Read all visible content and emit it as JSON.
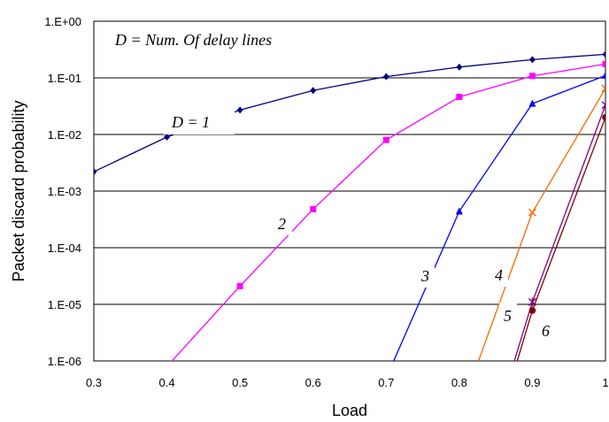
{
  "chart_data": {
    "type": "line",
    "title": "",
    "xlabel": "Load",
    "ylabel": "Packet discard probability",
    "xlim": [
      0.3,
      1
    ],
    "ylim_log10": [
      -6,
      0
    ],
    "yscale": "log",
    "grid": "horizontal",
    "x_ticks": [
      "0.3",
      "0.4",
      "0.5",
      "0.6",
      "0.7",
      "0.8",
      "0.9",
      "1"
    ],
    "y_ticks": [
      "1.E+00",
      "1.E-01",
      "1.E-02",
      "1.E-03",
      "1.E-04",
      "1.E-05",
      "1.E-06"
    ],
    "annotation": "D = Num. Of delay lines",
    "series": [
      {
        "name": "D = 1",
        "color": "#00007f",
        "marker": "diamond",
        "x": [
          0.3,
          0.4,
          0.5,
          0.6,
          0.7,
          0.8,
          0.9,
          1.0
        ],
        "y": [
          0.0022,
          0.009,
          0.027,
          0.06,
          0.105,
          0.155,
          0.21,
          0.26
        ]
      },
      {
        "name": "2",
        "color": "#ff00ff",
        "marker": "square",
        "x": [
          0.4,
          0.5,
          0.6,
          0.7,
          0.8,
          0.9,
          1.0
        ],
        "y": [
          8e-07,
          2.1e-05,
          0.00048,
          0.008,
          0.046,
          0.108,
          0.175
        ]
      },
      {
        "name": "3",
        "color": "#0000ff",
        "marker": "triangle",
        "x": [
          0.7,
          0.8,
          0.9,
          1.0
        ],
        "y": [
          5e-07,
          0.00044,
          0.035,
          0.11
        ]
      },
      {
        "name": "4",
        "color": "#ff6600",
        "marker": "x",
        "x": [
          0.82,
          0.9,
          1.0
        ],
        "y": [
          6e-07,
          0.00042,
          0.065
        ]
      },
      {
        "name": "5",
        "color": "#7f007f",
        "marker": "star",
        "x": [
          0.87,
          0.9,
          1.0
        ],
        "y": [
          6e-07,
          1.1e-05,
          0.033
        ]
      },
      {
        "name": "6",
        "color": "#7f0000",
        "marker": "circle",
        "x": [
          0.87,
          0.9,
          1.0
        ],
        "y": [
          4e-07,
          7.8e-06,
          0.02
        ]
      }
    ]
  }
}
